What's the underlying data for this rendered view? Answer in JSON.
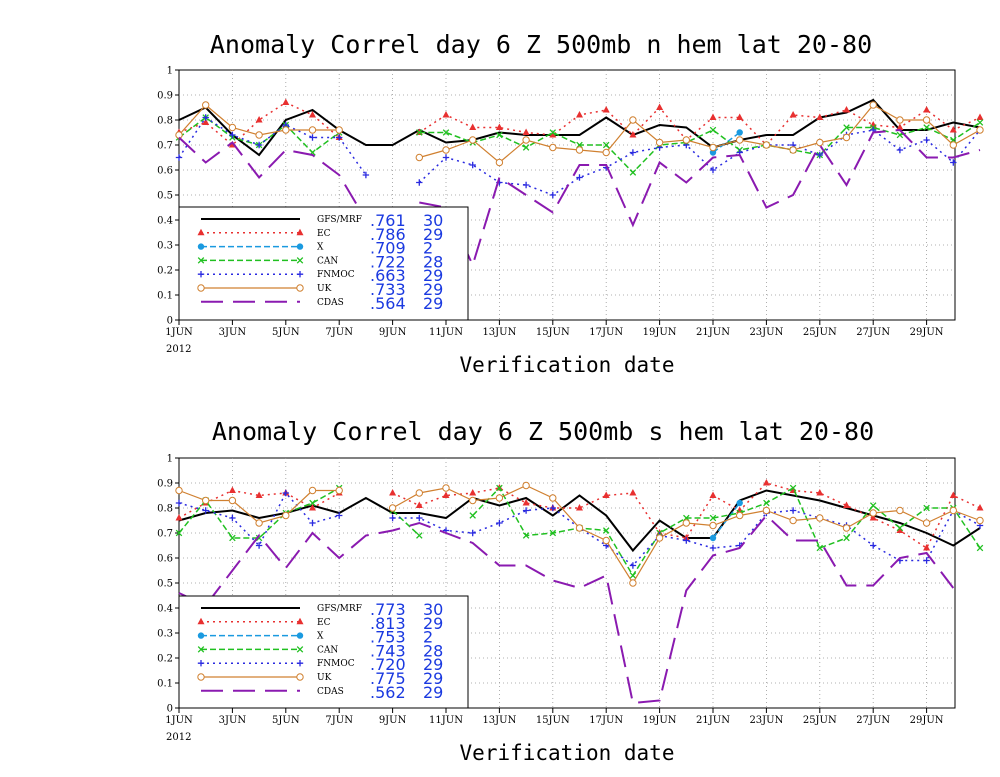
{
  "chart_data": [
    {
      "type": "line",
      "title": "Anomaly Correl  day 6  Z 500mb  n hem  lat 20-80",
      "xlabel": "Verification date",
      "ylabel": "",
      "ylim": [
        0,
        1
      ],
      "yticks": [
        "0",
        "0.1",
        "0.2",
        "0.3",
        "0.4",
        "0.5",
        "0.6",
        "0.7",
        "0.8",
        "0.9",
        "1"
      ],
      "xticks": [
        "1JUN",
        "3JUN",
        "5JUN",
        "7JUN",
        "9JUN",
        "11JUN",
        "13JUN",
        "15JUN",
        "17JUN",
        "19JUN",
        "21JUN",
        "23JUN",
        "25JUN",
        "27JUN",
        "29JUN"
      ],
      "xyear": "2012",
      "grid": true,
      "legend_position": "lower-left",
      "series": [
        {
          "name": "GFS/MRF",
          "color": "#000000",
          "dash": "solid",
          "marker": "none",
          "width": 2,
          "mean": ".761",
          "count": "30",
          "values": [
            0.8,
            0.85,
            0.74,
            0.66,
            0.8,
            0.84,
            0.76,
            0.7,
            0.7,
            0.76,
            0.71,
            0.72,
            0.75,
            0.74,
            0.74,
            0.74,
            0.81,
            0.74,
            0.78,
            0.77,
            0.69,
            0.72,
            0.74,
            0.74,
            0.81,
            0.83,
            0.88,
            0.76,
            0.76,
            0.79,
            0.77
          ]
        },
        {
          "name": "EC",
          "color": "#e83030",
          "dash": "dot",
          "marker": "triangle",
          "width": 1.5,
          "mean": ".786",
          "count": "29",
          "values": [
            0.75,
            0.79,
            0.7,
            0.8,
            0.87,
            0.82,
            0.73,
            null,
            null,
            0.75,
            0.82,
            0.77,
            0.77,
            0.75,
            0.74,
            0.82,
            0.84,
            0.74,
            0.85,
            0.72,
            0.81,
            0.81,
            0.7,
            0.82,
            0.81,
            0.84,
            0.78,
            0.77,
            0.84,
            0.76,
            0.81
          ]
        },
        {
          "name": "X",
          "color": "#1a9ae0",
          "dash": "dash",
          "marker": "circle",
          "width": 1.5,
          "mean": ".709",
          "count": "2",
          "values": [
            null,
            null,
            null,
            null,
            null,
            null,
            null,
            null,
            null,
            null,
            null,
            null,
            null,
            null,
            null,
            null,
            null,
            null,
            null,
            null,
            0.67,
            0.75,
            null,
            null,
            null,
            null,
            null,
            null,
            null,
            null,
            null
          ]
        },
        {
          "name": "CAN",
          "color": "#20c020",
          "dash": "dash",
          "marker": "x",
          "width": 1.5,
          "mean": ".722",
          "count": "28",
          "values": [
            0.73,
            0.81,
            0.73,
            0.7,
            0.78,
            0.67,
            0.75,
            null,
            null,
            0.75,
            0.75,
            0.71,
            0.74,
            0.69,
            0.75,
            0.7,
            0.7,
            0.59,
            0.7,
            0.71,
            0.76,
            0.68,
            0.7,
            0.68,
            0.66,
            0.77,
            0.77,
            0.74,
            0.77,
            0.72,
            0.79
          ]
        },
        {
          "name": "FNMOC",
          "color": "#2a2ae0",
          "dash": "dot",
          "marker": "plus",
          "width": 1.5,
          "mean": ".663",
          "count": "29",
          "values": [
            0.65,
            0.81,
            0.74,
            0.7,
            0.78,
            0.73,
            0.73,
            0.58,
            null,
            0.55,
            0.65,
            0.62,
            0.55,
            0.54,
            0.5,
            0.57,
            0.61,
            0.67,
            0.69,
            0.7,
            0.6,
            0.67,
            0.7,
            0.7,
            0.66,
            0.74,
            0.76,
            0.68,
            0.72,
            0.63,
            0.76
          ]
        },
        {
          "name": "UK",
          "color": "#d08030",
          "dash": "solid",
          "marker": "circle-open",
          "width": 1.2,
          "mean": ".733",
          "count": "29",
          "values": [
            0.74,
            0.86,
            0.77,
            0.74,
            0.76,
            0.76,
            0.76,
            null,
            null,
            0.65,
            0.68,
            0.72,
            0.63,
            0.72,
            0.69,
            0.68,
            0.67,
            0.8,
            0.71,
            0.72,
            0.69,
            0.72,
            0.7,
            0.68,
            0.71,
            0.73,
            0.86,
            0.8,
            0.8,
            0.7,
            0.76
          ]
        },
        {
          "name": "CDAS",
          "color": "#8a1ab0",
          "dash": "longdash",
          "marker": "none",
          "width": 2,
          "mean": ".564",
          "count": "29",
          "values": [
            0.73,
            0.63,
            0.71,
            0.57,
            0.68,
            0.66,
            0.58,
            0.4,
            null,
            0.47,
            0.45,
            0.22,
            0.57,
            0.5,
            0.43,
            0.62,
            0.62,
            0.38,
            0.63,
            0.55,
            0.65,
            0.66,
            0.45,
            0.5,
            0.7,
            0.54,
            0.75,
            0.76,
            0.65,
            0.65,
            0.68
          ]
        }
      ]
    },
    {
      "type": "line",
      "title": "Anomaly Correl  day 6  Z 500mb  s hem  lat 20-80",
      "xlabel": "Verification date",
      "ylabel": "",
      "ylim": [
        0,
        1
      ],
      "yticks": [
        "0",
        "0.1",
        "0.2",
        "0.3",
        "0.4",
        "0.5",
        "0.6",
        "0.7",
        "0.8",
        "0.9",
        "1"
      ],
      "xticks": [
        "1JUN",
        "3JUN",
        "5JUN",
        "7JUN",
        "9JUN",
        "11JUN",
        "13JUN",
        "15JUN",
        "17JUN",
        "19JUN",
        "21JUN",
        "23JUN",
        "25JUN",
        "27JUN",
        "29JUN"
      ],
      "xyear": "2012",
      "grid": true,
      "legend_position": "lower-left",
      "series": [
        {
          "name": "GFS/MRF",
          "color": "#000000",
          "dash": "solid",
          "marker": "none",
          "width": 2,
          "mean": ".773",
          "count": "30",
          "values": [
            0.75,
            0.78,
            0.79,
            0.76,
            0.78,
            0.81,
            0.78,
            0.84,
            0.78,
            0.78,
            0.76,
            0.84,
            0.81,
            0.84,
            0.77,
            0.85,
            0.77,
            0.63,
            0.75,
            0.68,
            0.68,
            0.83,
            0.87,
            0.85,
            0.83,
            0.8,
            0.77,
            0.74,
            0.7,
            0.65,
            0.72
          ]
        },
        {
          "name": "EC",
          "color": "#e83030",
          "dash": "dot",
          "marker": "triangle",
          "width": 1.5,
          "mean": ".813",
          "count": "29",
          "values": [
            0.76,
            0.82,
            0.87,
            0.85,
            0.86,
            0.8,
            0.86,
            null,
            0.86,
            0.81,
            0.85,
            0.86,
            0.88,
            0.82,
            0.8,
            0.8,
            0.85,
            0.86,
            0.7,
            0.68,
            0.85,
            0.79,
            0.9,
            0.87,
            0.86,
            0.81,
            0.76,
            0.71,
            0.64,
            0.85,
            0.8
          ]
        },
        {
          "name": "X",
          "color": "#1a9ae0",
          "dash": "dash",
          "marker": "circle",
          "width": 1.5,
          "mean": ".753",
          "count": "2",
          "values": [
            null,
            null,
            null,
            null,
            null,
            null,
            null,
            null,
            null,
            null,
            null,
            null,
            null,
            null,
            null,
            null,
            null,
            null,
            null,
            null,
            0.68,
            0.82,
            null,
            null,
            null,
            null,
            null,
            null,
            null,
            null,
            null
          ]
        },
        {
          "name": "CAN",
          "color": "#20c020",
          "dash": "dash",
          "marker": "x",
          "width": 1.5,
          "mean": ".743",
          "count": "28",
          "values": [
            0.7,
            0.83,
            0.68,
            0.68,
            0.78,
            0.82,
            0.88,
            null,
            0.79,
            0.69,
            null,
            0.77,
            0.88,
            0.69,
            0.7,
            0.72,
            0.71,
            0.53,
            0.7,
            0.76,
            0.76,
            0.78,
            0.82,
            0.88,
            0.64,
            0.68,
            0.81,
            0.72,
            0.8,
            0.8,
            0.64
          ]
        },
        {
          "name": "FNMOC",
          "color": "#2a2ae0",
          "dash": "dot",
          "marker": "plus",
          "width": 1.5,
          "mean": ".720",
          "count": "29",
          "values": [
            0.82,
            0.79,
            0.76,
            0.65,
            0.86,
            0.74,
            0.77,
            null,
            0.76,
            0.76,
            0.71,
            0.7,
            0.74,
            0.79,
            0.8,
            0.72,
            0.65,
            0.57,
            0.69,
            0.67,
            0.64,
            0.65,
            0.78,
            0.79,
            0.76,
            0.73,
            0.65,
            0.59,
            0.59,
            0.79,
            0.73
          ]
        },
        {
          "name": "UK",
          "color": "#d08030",
          "dash": "solid",
          "marker": "circle-open",
          "width": 1.2,
          "mean": ".775",
          "count": "29",
          "values": [
            0.87,
            0.83,
            0.83,
            0.74,
            0.77,
            0.87,
            0.87,
            null,
            0.8,
            0.86,
            0.88,
            0.83,
            0.84,
            0.89,
            0.84,
            0.72,
            0.67,
            0.5,
            0.68,
            0.74,
            0.73,
            0.77,
            0.79,
            0.75,
            0.76,
            0.72,
            0.78,
            0.79,
            0.74,
            0.79,
            0.75
          ]
        },
        {
          "name": "CDAS",
          "color": "#8a1ab0",
          "dash": "longdash",
          "marker": "none",
          "width": 2,
          "mean": ".562",
          "count": "29",
          "values": [
            0.46,
            0.41,
            0.55,
            0.69,
            0.56,
            0.7,
            0.6,
            0.69,
            0.71,
            0.74,
            0.7,
            0.66,
            0.57,
            0.57,
            0.51,
            0.48,
            0.53,
            0.02,
            0.03,
            0.47,
            0.61,
            0.64,
            0.77,
            0.67,
            0.67,
            0.49,
            0.49,
            0.6,
            0.62,
            0.48,
            null
          ]
        }
      ]
    }
  ]
}
